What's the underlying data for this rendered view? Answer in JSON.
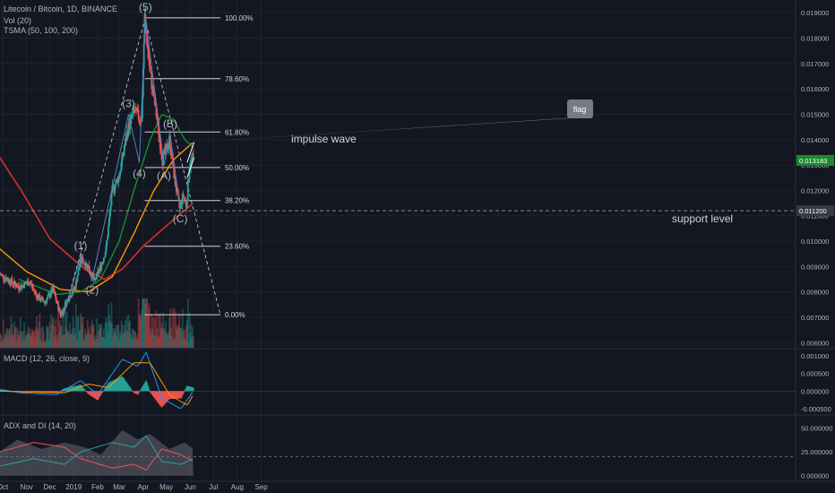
{
  "header": {
    "symbol_line": "Litecoin / Bitcoin, 1D, BINANCE",
    "vol_line": "Vol (20)",
    "tsma_line": "TSMA (50, 100, 200)"
  },
  "macd_label": "MACD (12, 26, close, 9)",
  "adx_label": "ADX and DI (14, 20)",
  "colors": {
    "background": "#131722",
    "grid": "#1e222d",
    "up": "#26a69a",
    "down": "#ef5350",
    "sma50": "#1b8a2f",
    "sma100": "#ff9800",
    "sma200": "#d32f2f",
    "annotation": "#b2b5be",
    "wave_line": "#5b7fbf",
    "price_tag": "#1b8a2f"
  },
  "chart_data": [
    {
      "type": "candlestick",
      "title": "Litecoin / Bitcoin, 1D, BINANCE",
      "x_ticks": [
        "Oct",
        "Nov",
        "Dec",
        "2019",
        "Feb",
        "Mar",
        "Apr",
        "May",
        "Jun",
        "Jul",
        "Aug",
        "Sep"
      ],
      "ylim": [
        0.0058,
        0.0195
      ],
      "y_ticks": [
        "0.019000",
        "0.018000",
        "0.017000",
        "0.016000",
        "0.015000",
        "0.014000",
        "0.013000",
        "0.012000",
        "0.011000",
        "0.010000",
        "0.009000",
        "0.008000",
        "0.007000",
        "0.006000"
      ],
      "price_path": [
        {
          "date": "2018-09-27",
          "price": 0.0087
        },
        {
          "date": "2018-10-12",
          "price": 0.0084
        },
        {
          "date": "2018-10-22",
          "price": 0.0082
        },
        {
          "date": "2018-11-05",
          "price": 0.0084
        },
        {
          "date": "2018-11-15",
          "price": 0.0078
        },
        {
          "date": "2018-11-25",
          "price": 0.0076
        },
        {
          "date": "2018-12-05",
          "price": 0.0081
        },
        {
          "date": "2018-12-15",
          "price": 0.0071
        },
        {
          "date": "2018-12-24",
          "price": 0.0077
        },
        {
          "date": "2019-01-03",
          "price": 0.0082
        },
        {
          "date": "2019-01-10",
          "price": 0.0093
        },
        {
          "date": "2019-01-20",
          "price": 0.009
        },
        {
          "date": "2019-01-28",
          "price": 0.0084
        },
        {
          "date": "2019-02-06",
          "price": 0.0091
        },
        {
          "date": "2019-02-12",
          "price": 0.0097
        },
        {
          "date": "2019-02-20",
          "price": 0.012
        },
        {
          "date": "2019-03-01",
          "price": 0.0126
        },
        {
          "date": "2019-03-12",
          "price": 0.0144
        },
        {
          "date": "2019-03-20",
          "price": 0.0151
        },
        {
          "date": "2019-03-30",
          "price": 0.0148
        },
        {
          "date": "2019-04-03",
          "price": 0.0188
        },
        {
          "date": "2019-04-10",
          "price": 0.0166
        },
        {
          "date": "2019-04-18",
          "price": 0.015
        },
        {
          "date": "2019-04-26",
          "price": 0.0132
        },
        {
          "date": "2019-05-05",
          "price": 0.014
        },
        {
          "date": "2019-05-12",
          "price": 0.0124
        },
        {
          "date": "2019-05-18",
          "price": 0.0113
        },
        {
          "date": "2019-05-23",
          "price": 0.0118
        },
        {
          "date": "2019-05-27",
          "price": 0.0114
        },
        {
          "date": "2019-05-31",
          "price": 0.013
        },
        {
          "date": "2019-06-05",
          "price": 0.0133
        }
      ],
      "sma50": [
        {
          "date": "2018-10-22",
          "price": 0.0085
        },
        {
          "date": "2018-12-10",
          "price": 0.0079
        },
        {
          "date": "2019-01-10",
          "price": 0.008
        },
        {
          "date": "2019-02-05",
          "price": 0.0085
        },
        {
          "date": "2019-03-01",
          "price": 0.01
        },
        {
          "date": "2019-03-20",
          "price": 0.012
        },
        {
          "date": "2019-04-10",
          "price": 0.014
        },
        {
          "date": "2019-04-25",
          "price": 0.015
        },
        {
          "date": "2019-05-10",
          "price": 0.0148
        },
        {
          "date": "2019-05-25",
          "price": 0.014
        },
        {
          "date": "2019-06-05",
          "price": 0.0137
        }
      ],
      "sma100": [
        {
          "date": "2018-09-27",
          "price": 0.0097
        },
        {
          "date": "2018-11-01",
          "price": 0.0088
        },
        {
          "date": "2018-12-15",
          "price": 0.0081
        },
        {
          "date": "2019-01-20",
          "price": 0.008
        },
        {
          "date": "2019-02-20",
          "price": 0.0086
        },
        {
          "date": "2019-03-20",
          "price": 0.0103
        },
        {
          "date": "2019-04-15",
          "price": 0.012
        },
        {
          "date": "2019-05-10",
          "price": 0.0132
        },
        {
          "date": "2019-06-05",
          "price": 0.0139
        }
      ],
      "sma200": [
        {
          "date": "2018-09-27",
          "price": 0.0133
        },
        {
          "date": "2018-10-25",
          "price": 0.012
        },
        {
          "date": "2018-12-01",
          "price": 0.0101
        },
        {
          "date": "2019-01-15",
          "price": 0.0089
        },
        {
          "date": "2019-02-10",
          "price": 0.0085
        },
        {
          "date": "2019-03-05",
          "price": 0.0089
        },
        {
          "date": "2019-04-01",
          "price": 0.0098
        },
        {
          "date": "2019-05-01",
          "price": 0.0106
        },
        {
          "date": "2019-06-05",
          "price": 0.0115
        }
      ],
      "fibonacci": {
        "start_date": "2019-04-03",
        "end_date": "2019-07-10",
        "levels": [
          {
            "label": "100.00%",
            "price": 0.0188
          },
          {
            "label": "78.60%",
            "price": 0.0164
          },
          {
            "label": "61.80%",
            "price": 0.0143
          },
          {
            "label": "50.00%",
            "price": 0.0129
          },
          {
            "label": "38.20%",
            "price": 0.0116
          },
          {
            "label": "23.60%",
            "price": 0.0098
          },
          {
            "label": "0.00%",
            "price": 0.0071
          }
        ]
      },
      "wave_points": [
        {
          "date": "2018-12-18",
          "price": 0.007
        },
        {
          "date": "2019-01-10",
          "price": 0.0094,
          "label": "(1)"
        },
        {
          "date": "2019-01-25",
          "price": 0.0085,
          "label": "(2)"
        },
        {
          "date": "2019-03-13",
          "price": 0.015,
          "label": "(3)"
        },
        {
          "date": "2019-03-27",
          "price": 0.0131,
          "label": "(4)"
        },
        {
          "date": "2019-04-04",
          "price": 0.0188,
          "label": "(5)"
        },
        {
          "date": "2019-04-28",
          "price": 0.013,
          "label": "(A)"
        },
        {
          "date": "2019-05-06",
          "price": 0.0142,
          "label": "(B)"
        },
        {
          "date": "2019-05-19",
          "price": 0.0113,
          "label": "(C)"
        }
      ],
      "annotations": {
        "impulse_wave": "impulse wave",
        "support": "support level",
        "flag": "flag"
      },
      "support_level": 0.0112,
      "current_price": "0.013183",
      "support_price_tag": "0.011200"
    },
    {
      "type": "bar",
      "title": "MACD (12, 26, close, 9)",
      "ylim": [
        -0.00065,
        0.00115
      ],
      "y_ticks": [
        "0.001000",
        "0.000500",
        "0.000000",
        "-0.000500"
      ],
      "macd_line": [
        {
          "date": "2018-09-27",
          "value": 5e-05
        },
        {
          "date": "2018-10-25",
          "value": -5e-05
        },
        {
          "date": "2018-12-10",
          "value": -0.0001
        },
        {
          "date": "2019-01-10",
          "value": 0.0003
        },
        {
          "date": "2019-02-01",
          "value": -0.0001
        },
        {
          "date": "2019-03-05",
          "value": 0.0009
        },
        {
          "date": "2019-03-25",
          "value": 0.0007
        },
        {
          "date": "2019-04-05",
          "value": 0.0011
        },
        {
          "date": "2019-04-25",
          "value": -0.0002
        },
        {
          "date": "2019-05-20",
          "value": -0.0005
        },
        {
          "date": "2019-06-05",
          "value": 0.0
        }
      ],
      "signal_line": [
        {
          "date": "2018-09-27",
          "value": 0.0
        },
        {
          "date": "2018-12-20",
          "value": -5e-05
        },
        {
          "date": "2019-01-20",
          "value": 0.0002
        },
        {
          "date": "2019-02-15",
          "value": 0.0001
        },
        {
          "date": "2019-03-20",
          "value": 0.0008
        },
        {
          "date": "2019-04-10",
          "value": 0.0008
        },
        {
          "date": "2019-05-05",
          "value": -0.0001
        },
        {
          "date": "2019-05-28",
          "value": -0.0004
        },
        {
          "date": "2019-06-05",
          "value": -0.0001
        }
      ]
    },
    {
      "type": "line",
      "title": "ADX and DI (14, 20)",
      "ylim": [
        -5,
        62
      ],
      "y_ticks": [
        "50.000000",
        "25.000000",
        "0.000000"
      ],
      "threshold": 20,
      "adx": [
        {
          "date": "2018-09-27",
          "value": 25
        },
        {
          "date": "2018-10-20",
          "value": 38
        },
        {
          "date": "2018-11-20",
          "value": 28
        },
        {
          "date": "2018-12-20",
          "value": 35
        },
        {
          "date": "2019-01-15",
          "value": 30
        },
        {
          "date": "2019-02-05",
          "value": 22
        },
        {
          "date": "2019-03-05",
          "value": 48
        },
        {
          "date": "2019-03-25",
          "value": 38
        },
        {
          "date": "2019-04-10",
          "value": 44
        },
        {
          "date": "2019-05-05",
          "value": 28
        },
        {
          "date": "2019-05-25",
          "value": 35
        },
        {
          "date": "2019-06-05",
          "value": 28
        }
      ],
      "plus_di": [
        {
          "date": "2018-09-27",
          "value": 10
        },
        {
          "date": "2018-11-10",
          "value": 18
        },
        {
          "date": "2018-12-20",
          "value": 12
        },
        {
          "date": "2019-01-10",
          "value": 25
        },
        {
          "date": "2019-02-20",
          "value": 35
        },
        {
          "date": "2019-03-20",
          "value": 30
        },
        {
          "date": "2019-04-05",
          "value": 42
        },
        {
          "date": "2019-04-25",
          "value": 15
        },
        {
          "date": "2019-05-20",
          "value": 12
        },
        {
          "date": "2019-06-05",
          "value": 18
        }
      ],
      "minus_di": [
        {
          "date": "2018-09-27",
          "value": 25
        },
        {
          "date": "2018-11-10",
          "value": 35
        },
        {
          "date": "2018-12-20",
          "value": 30
        },
        {
          "date": "2019-01-10",
          "value": 18
        },
        {
          "date": "2019-02-20",
          "value": 8
        },
        {
          "date": "2019-03-20",
          "value": 12
        },
        {
          "date": "2019-04-05",
          "value": 6
        },
        {
          "date": "2019-04-25",
          "value": 28
        },
        {
          "date": "2019-05-20",
          "value": 22
        },
        {
          "date": "2019-06-05",
          "value": 15
        }
      ]
    }
  ]
}
